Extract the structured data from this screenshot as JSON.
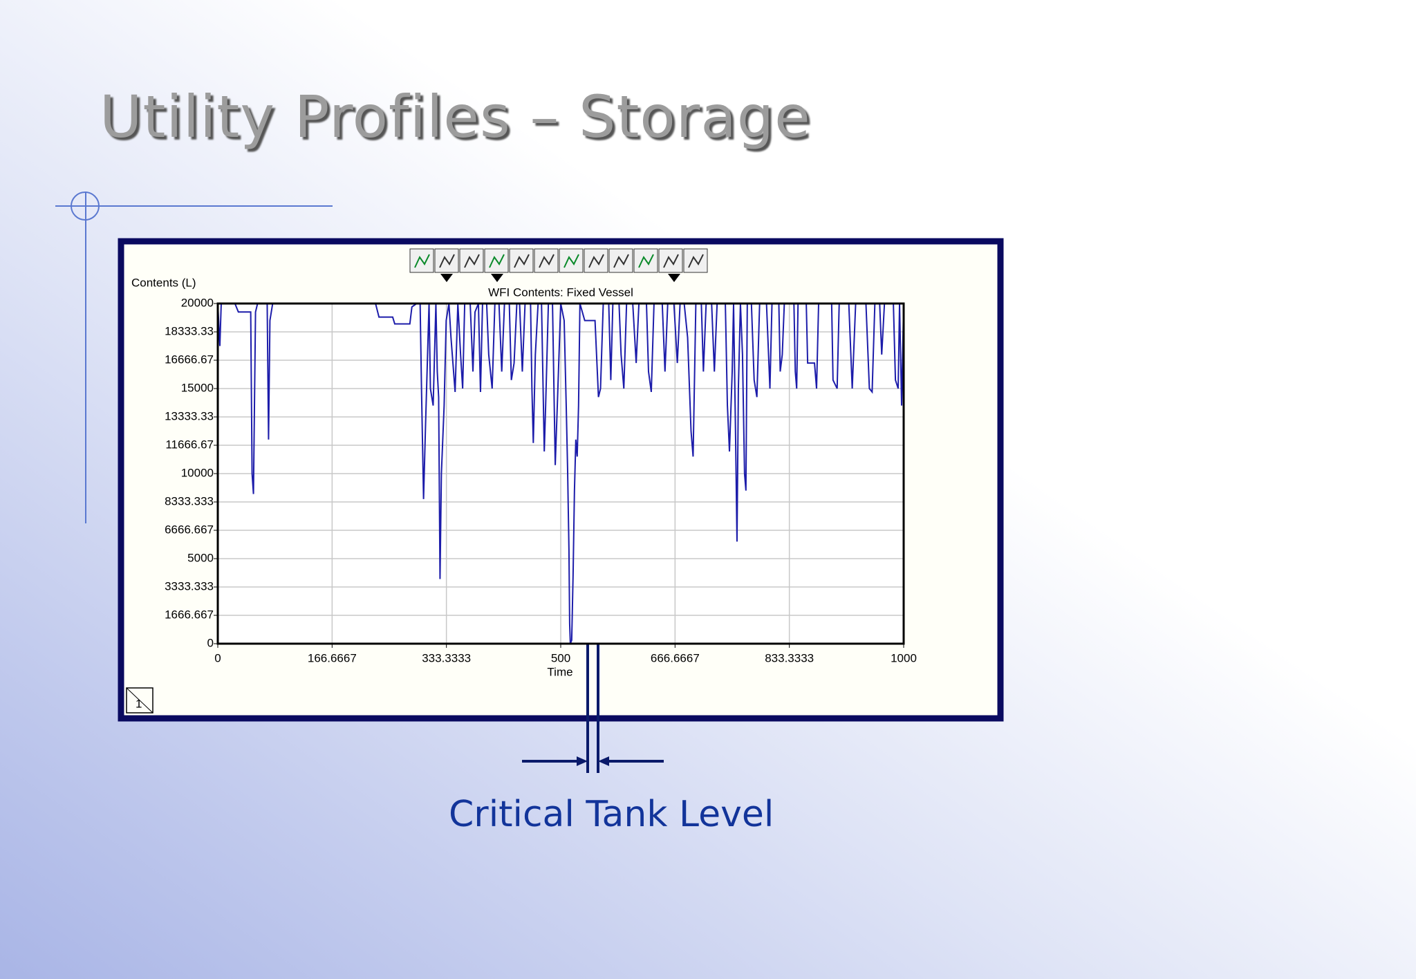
{
  "slide_title": "Utility Profiles – Storage",
  "annotation": "Critical Tank Level",
  "corner_label": "1",
  "chart_data": {
    "type": "line",
    "title": "WFI Contents: Fixed Vessel",
    "x_label": "Time",
    "y_label": "Contents (L)",
    "xlim": [
      0,
      1000
    ],
    "ylim": [
      0,
      20000
    ],
    "xticks": [
      0,
      166.6667,
      333.3333,
      500,
      666.6667,
      833.3333,
      1000
    ],
    "yticks": [
      0,
      1666.667,
      3333.333,
      5000,
      6666.667,
      8333.333,
      10000,
      11666.67,
      13333.33,
      15000,
      16666.67,
      18333.33,
      20000
    ],
    "grid": true,
    "x": [
      0,
      3,
      5,
      25,
      30,
      48,
      50,
      52,
      55,
      58,
      72,
      74,
      76,
      80,
      230,
      235,
      255,
      258,
      280,
      283,
      290,
      295,
      297,
      300,
      303,
      308,
      310,
      314,
      318,
      320,
      322,
      324,
      326,
      330,
      333,
      337,
      340,
      346,
      350,
      354,
      357,
      360,
      368,
      372,
      375,
      380,
      383,
      386,
      392,
      395,
      400,
      404,
      410,
      414,
      418,
      425,
      428,
      432,
      436,
      440,
      444,
      448,
      456,
      458,
      460,
      463,
      467,
      472,
      476,
      478,
      482,
      488,
      492,
      495,
      500,
      505,
      508,
      510,
      512,
      513,
      514,
      516,
      518,
      520,
      522,
      524,
      526,
      528,
      535,
      550,
      555,
      558,
      562,
      570,
      573,
      576,
      585,
      588,
      592,
      596,
      605,
      610,
      614,
      625,
      628,
      632,
      636,
      648,
      652,
      656,
      665,
      670,
      674,
      680,
      685,
      690,
      693,
      697,
      705,
      708,
      712,
      720,
      724,
      728,
      740,
      743,
      746,
      750,
      752,
      755,
      757,
      759,
      762,
      765,
      768,
      770,
      772,
      778,
      782,
      786,
      790,
      800,
      805,
      808,
      818,
      820,
      823,
      826,
      840,
      842,
      844,
      846,
      858,
      860,
      870,
      873,
      876,
      895,
      897,
      903,
      906,
      920,
      925,
      930,
      945,
      950,
      954,
      958,
      965,
      968,
      972,
      985,
      988,
      992,
      994,
      997,
      1000
    ],
    "series": [
      {
        "name": "WFI Contents",
        "color": "#1c1caa",
        "values": [
          20000,
          17500,
          20000,
          20000,
          19500,
          19500,
          10000,
          8800,
          19500,
          20000,
          20000,
          12000,
          19000,
          20000,
          20000,
          19200,
          19200,
          18800,
          18800,
          19800,
          20000,
          20000,
          15000,
          8500,
          13000,
          20000,
          15000,
          14000,
          20000,
          16000,
          14500,
          3800,
          10000,
          14000,
          19000,
          20000,
          18000,
          14800,
          20000,
          17000,
          15000,
          20000,
          20000,
          16000,
          19500,
          20000,
          14800,
          20000,
          20000,
          17000,
          15000,
          20000,
          20000,
          16000,
          20000,
          20000,
          15500,
          16500,
          20000,
          20000,
          16000,
          20000,
          20000,
          15000,
          11800,
          17000,
          20000,
          20000,
          11300,
          14000,
          20000,
          20000,
          10500,
          14000,
          20000,
          19000,
          14000,
          10300,
          5500,
          1200,
          0,
          200,
          4000,
          9000,
          12000,
          11000,
          14000,
          20000,
          19000,
          19000,
          14500,
          15000,
          20000,
          20000,
          15500,
          20000,
          20000,
          17000,
          15000,
          20000,
          20000,
          16500,
          20000,
          20000,
          16000,
          14800,
          20000,
          20000,
          16000,
          20000,
          20000,
          16500,
          20000,
          20000,
          18000,
          12500,
          11000,
          20000,
          20000,
          16000,
          20000,
          20000,
          16000,
          20000,
          20000,
          14000,
          11300,
          16000,
          20000,
          12000,
          6000,
          15000,
          20000,
          17000,
          10000,
          9000,
          20000,
          20000,
          15500,
          14500,
          20000,
          20000,
          15000,
          20000,
          20000,
          16000,
          17000,
          20000,
          20000,
          16000,
          15000,
          20000,
          20000,
          16500,
          16500,
          15000,
          20000,
          20000,
          15500,
          15000,
          20000,
          20000,
          15000,
          20000,
          20000,
          15000,
          14800,
          20000,
          20000,
          17000,
          20000,
          20000,
          15500,
          15000,
          20000,
          14000,
          20000
        ]
      }
    ]
  }
}
